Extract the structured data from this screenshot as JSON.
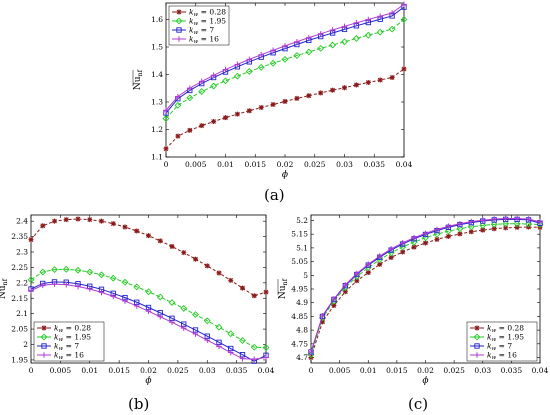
{
  "panel_labels": [
    "(a)",
    "(b)",
    "(c)"
  ],
  "chart_data": [
    {
      "type": "line",
      "panel": "(a)",
      "xlabel": "ϕ",
      "ylabel": "Nu_nf",
      "xlim": [
        0,
        0.04
      ],
      "ylim": [
        1.1,
        1.66
      ],
      "xticks": [
        0,
        0.005,
        0.01,
        0.015,
        0.02,
        0.025,
        0.03,
        0.035,
        0.04
      ],
      "xtick_labels": [
        "0",
        "0.005",
        "0.01",
        "0.015",
        "0.02",
        "0.025",
        "0.03",
        "0.035",
        "0.04"
      ],
      "yticks": [
        1.1,
        1.2,
        1.3,
        1.4,
        1.5,
        1.6
      ],
      "ytick_labels": [
        "1.1",
        "1.2",
        "1.3",
        "1.4",
        "1.5",
        "1.6"
      ],
      "legend_position": "top-left",
      "x": [
        0,
        0.002,
        0.004,
        0.006,
        0.008,
        0.01,
        0.012,
        0.014,
        0.016,
        0.018,
        0.02,
        0.022,
        0.024,
        0.026,
        0.028,
        0.03,
        0.032,
        0.034,
        0.036,
        0.038,
        0.04
      ],
      "series": [
        {
          "name": "k_w = 0.28",
          "color": "#8b1a1a",
          "marker": "star",
          "values": [
            1.13,
            1.176,
            1.197,
            1.214,
            1.229,
            1.243,
            1.256,
            1.268,
            1.28,
            1.291,
            1.302,
            1.313,
            1.323,
            1.333,
            1.343,
            1.352,
            1.362,
            1.371,
            1.38,
            1.389,
            1.42
          ]
        },
        {
          "name": "k_w = 1.95",
          "color": "#22cc22",
          "marker": "diamond",
          "values": [
            1.24,
            1.288,
            1.315,
            1.338,
            1.358,
            1.377,
            1.394,
            1.411,
            1.426,
            1.441,
            1.455,
            1.469,
            1.482,
            1.495,
            1.507,
            1.519,
            1.531,
            1.543,
            1.554,
            1.565,
            1.6
          ]
        },
        {
          "name": "k_w = 7",
          "color": "#2222cc",
          "marker": "square",
          "values": [
            1.26,
            1.312,
            1.342,
            1.367,
            1.389,
            1.409,
            1.428,
            1.446,
            1.463,
            1.479,
            1.494,
            1.509,
            1.524,
            1.538,
            1.551,
            1.564,
            1.577,
            1.589,
            1.601,
            1.613,
            1.645
          ]
        },
        {
          "name": "k_w = 16",
          "color": "#b03ad4",
          "marker": "plus",
          "values": [
            1.27,
            1.32,
            1.35,
            1.375,
            1.397,
            1.418,
            1.437,
            1.455,
            1.472,
            1.488,
            1.504,
            1.519,
            1.534,
            1.548,
            1.562,
            1.575,
            1.588,
            1.6,
            1.612,
            1.624,
            1.655
          ]
        }
      ]
    },
    {
      "type": "line",
      "panel": "(b)",
      "xlabel": "ϕ",
      "ylabel": "Nu_nf",
      "xlim": [
        0,
        0.04
      ],
      "ylim": [
        1.94,
        2.42
      ],
      "xticks": [
        0,
        0.005,
        0.01,
        0.015,
        0.02,
        0.025,
        0.03,
        0.035,
        0.04
      ],
      "xtick_labels": [
        "0",
        "0.005",
        "0.01",
        "0.015",
        "0.02",
        "0.025",
        "0.03",
        "0.035",
        "0.04"
      ],
      "yticks": [
        1.95,
        2,
        2.05,
        2.1,
        2.15,
        2.2,
        2.25,
        2.3,
        2.35,
        2.4
      ],
      "ytick_labels": [
        "1.95",
        "2",
        "2.05",
        "2.1",
        "2.15",
        "2.2",
        "2.25",
        "2.3",
        "2.35",
        "2.4"
      ],
      "legend_position": "bottom-left",
      "x": [
        0,
        0.002,
        0.004,
        0.006,
        0.008,
        0.01,
        0.012,
        0.014,
        0.016,
        0.018,
        0.02,
        0.022,
        0.024,
        0.026,
        0.028,
        0.03,
        0.032,
        0.034,
        0.036,
        0.038,
        0.04
      ],
      "series": [
        {
          "name": "k_w = 0.28",
          "color": "#8b1a1a",
          "marker": "star",
          "values": [
            2.34,
            2.385,
            2.4,
            2.405,
            2.407,
            2.405,
            2.4,
            2.392,
            2.381,
            2.368,
            2.353,
            2.336,
            2.318,
            2.298,
            2.277,
            2.255,
            2.232,
            2.208,
            2.183,
            2.158,
            2.17
          ]
        },
        {
          "name": "k_w = 1.95",
          "color": "#22cc22",
          "marker": "diamond",
          "values": [
            2.21,
            2.235,
            2.243,
            2.244,
            2.241,
            2.235,
            2.226,
            2.215,
            2.202,
            2.187,
            2.171,
            2.154,
            2.136,
            2.117,
            2.097,
            2.077,
            2.056,
            2.035,
            2.013,
            1.991,
            1.99
          ]
        },
        {
          "name": "k_w = 7",
          "color": "#2222cc",
          "marker": "square",
          "values": [
            2.18,
            2.198,
            2.203,
            2.202,
            2.197,
            2.189,
            2.179,
            2.166,
            2.152,
            2.137,
            2.12,
            2.103,
            2.085,
            2.066,
            2.047,
            2.027,
            2.007,
            1.987,
            1.967,
            1.946,
            1.965
          ]
        },
        {
          "name": "k_w = 16",
          "color": "#b03ad4",
          "marker": "plus",
          "values": [
            2.175,
            2.192,
            2.196,
            2.194,
            2.188,
            2.18,
            2.169,
            2.156,
            2.141,
            2.125,
            2.108,
            2.09,
            2.072,
            2.053,
            2.034,
            2.014,
            1.994,
            1.974,
            1.954,
            1.952,
            1.958
          ]
        }
      ]
    },
    {
      "type": "line",
      "panel": "(c)",
      "xlabel": "ϕ",
      "ylabel": "Nu_nf",
      "xlim": [
        0,
        0.04
      ],
      "ylim": [
        4.68,
        5.22
      ],
      "xticks": [
        0,
        0.005,
        0.01,
        0.015,
        0.02,
        0.025,
        0.03,
        0.035,
        0.04
      ],
      "xtick_labels": [
        "0",
        "0.005",
        "0.01",
        "0.015",
        "0.02",
        "0.025",
        "0.03",
        "0.035",
        "0.04"
      ],
      "yticks": [
        4.7,
        4.75,
        4.8,
        4.85,
        4.9,
        4.95,
        5,
        5.05,
        5.1,
        5.15,
        5.2
      ],
      "ytick_labels": [
        "4.7",
        "4.75",
        "4.8",
        "4.85",
        "4.9",
        "4.95",
        "5",
        "5.05",
        "5.1",
        "5.15",
        "5.2"
      ],
      "legend_position": "bottom-right",
      "x": [
        0,
        0.002,
        0.004,
        0.006,
        0.008,
        0.01,
        0.012,
        0.014,
        0.016,
        0.018,
        0.02,
        0.022,
        0.024,
        0.026,
        0.028,
        0.03,
        0.032,
        0.034,
        0.036,
        0.038,
        0.04
      ],
      "series": [
        {
          "name": "k_w = 0.28",
          "color": "#8b1a1a",
          "marker": "star",
          "values": [
            4.7,
            4.83,
            4.89,
            4.94,
            4.98,
            5.01,
            5.04,
            5.065,
            5.085,
            5.103,
            5.118,
            5.131,
            5.142,
            5.151,
            5.159,
            5.165,
            5.17,
            5.173,
            5.175,
            5.176,
            5.175
          ]
        },
        {
          "name": "k_w = 1.95",
          "color": "#22cc22",
          "marker": "diamond",
          "values": [
            4.71,
            4.845,
            4.906,
            4.955,
            4.995,
            5.028,
            5.057,
            5.082,
            5.103,
            5.121,
            5.137,
            5.15,
            5.161,
            5.17,
            5.177,
            5.182,
            5.186,
            5.188,
            5.188,
            5.187,
            5.185
          ]
        },
        {
          "name": "k_w = 7",
          "color": "#2222cc",
          "marker": "square",
          "values": [
            4.72,
            4.85,
            4.912,
            4.962,
            5.003,
            5.037,
            5.066,
            5.092,
            5.114,
            5.133,
            5.149,
            5.163,
            5.175,
            5.185,
            5.192,
            5.198,
            5.202,
            5.204,
            5.204,
            5.202,
            5.19
          ]
        },
        {
          "name": "k_w = 16",
          "color": "#b03ad4",
          "marker": "plus",
          "values": [
            4.72,
            4.852,
            4.914,
            4.965,
            5.006,
            5.04,
            5.07,
            5.096,
            5.118,
            5.137,
            5.153,
            5.167,
            5.179,
            5.188,
            5.196,
            5.201,
            5.205,
            5.207,
            5.207,
            5.205,
            5.195
          ]
        }
      ]
    }
  ]
}
